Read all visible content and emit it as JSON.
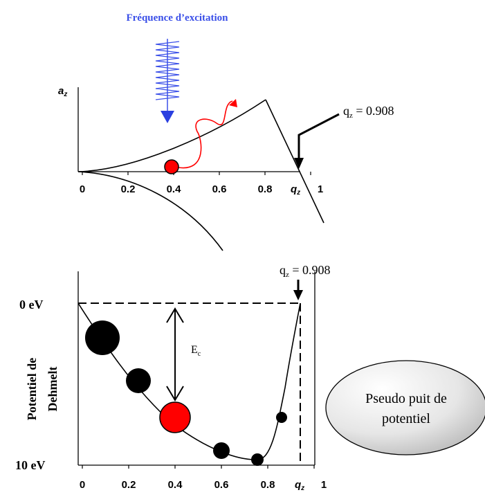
{
  "top_panel": {
    "excitation_label": "Fréquence d’excitation",
    "y_axis_label": "a",
    "y_axis_sub": "z",
    "x_axis_label": "q",
    "x_axis_sub": "z",
    "x_ticks": [
      "0",
      "0.2",
      "0.4",
      "0.6",
      "0.8",
      "1"
    ],
    "qz_callout": "q",
    "qz_callout_sub": "z",
    "qz_callout_value": " = 0.908"
  },
  "bottom_panel": {
    "y_axis_label_line1": "Potentiel de",
    "y_axis_label_line2": "Dehmelt",
    "y_top_label": "0 eV",
    "y_bottom_label": "10 eV",
    "energy_label": "E",
    "energy_sub": "c",
    "x_axis_label": "q",
    "x_axis_sub": "z",
    "x_ticks": [
      "0",
      "0.2",
      "0.4",
      "0.6",
      "0.8",
      "1"
    ],
    "qz_callout": "q",
    "qz_callout_sub": "z",
    "qz_callout_value": " = 0.908",
    "well_label_line1": "Pseudo puit de",
    "well_label_line2": "potentiel"
  },
  "colors": {
    "excitation_blue": "#3a4fe8",
    "ion_red": "#ff0000",
    "ink": "#000000"
  }
}
